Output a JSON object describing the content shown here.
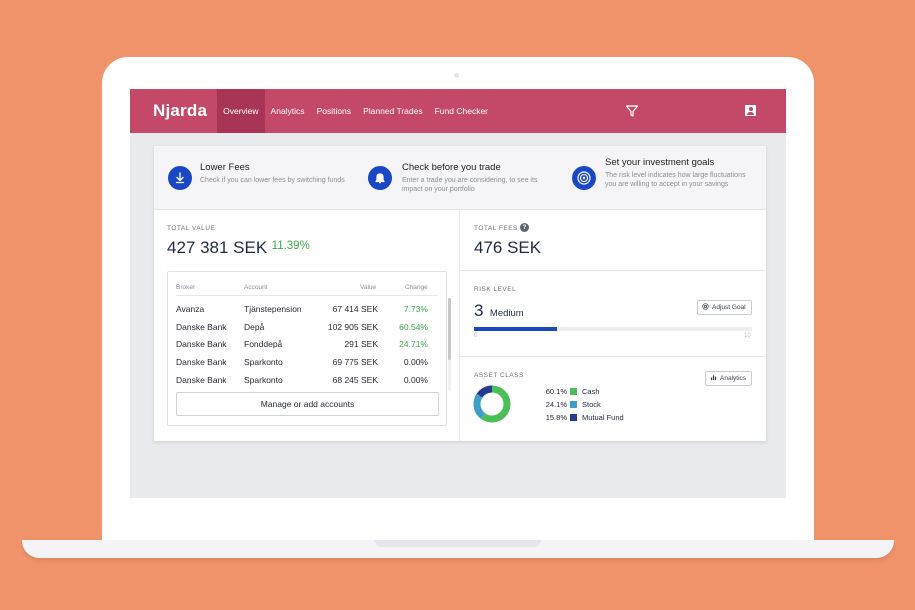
{
  "nav": {
    "logo": "Njarda",
    "items": [
      "Overview",
      "Analytics",
      "Positions",
      "Planned Trades",
      "Fund Checker"
    ],
    "active": "Overview"
  },
  "features": [
    {
      "title": "Lower Fees",
      "desc": "Check if you can lower fees by switching funds",
      "icon": "download-arrow-icon"
    },
    {
      "title": "Check before you trade",
      "desc": "Enter a trade you are considering, to see its impact on your portfolio",
      "icon": "bell-icon"
    },
    {
      "title": "Set your investment goals",
      "desc": "The risk level indicates how large fluctuations you are willing to accept in your savings",
      "icon": "target-icon"
    }
  ],
  "total_value": {
    "label": "TOTAL VALUE",
    "amount": "427 381 SEK",
    "change": "11.39%"
  },
  "accounts_table": {
    "headers": {
      "broker": "Broker",
      "account": "Account",
      "value": "Value",
      "change": "Change"
    },
    "rows": [
      {
        "broker": "Avanza",
        "account": "Tjänstepension",
        "value": "67 414 SEK",
        "change": "7.73%",
        "positive": true
      },
      {
        "broker": "Danske Bank",
        "account": "Depå",
        "value": "102 905 SEK",
        "change": "60.54%",
        "positive": true
      },
      {
        "broker": "Danske Bank",
        "account": "Fonddepå",
        "value": "291 SEK",
        "change": "24.71%",
        "positive": true
      },
      {
        "broker": "Danske Bank",
        "account": "Sparkonto",
        "value": "69 775 SEK",
        "change": "0.00%",
        "positive": false
      },
      {
        "broker": "Danske Bank",
        "account": "Sparkonto",
        "value": "68 245 SEK",
        "change": "0.00%",
        "positive": false
      }
    ],
    "manage_label": "Manage or add accounts"
  },
  "total_fees": {
    "label": "TOTAL FEES",
    "amount": "476 SEK"
  },
  "risk": {
    "label": "RISK LEVEL",
    "level": "3",
    "level_name": "Medium",
    "min": "0",
    "max": "10",
    "fraction": 0.3,
    "adjust_label": "Adjust Goal"
  },
  "asset_class": {
    "label": "ASSET CLASS",
    "analytics_label": "Analytics",
    "items": [
      {
        "pct": "60.1%",
        "name": "Cash",
        "value": 60.1,
        "color": "#4bbf57"
      },
      {
        "pct": "24.1%",
        "name": "Stock",
        "value": 24.1,
        "color": "#3d9ec7"
      },
      {
        "pct": "15.8%",
        "name": "Mutual Fund",
        "value": 15.8,
        "color": "#243b91"
      }
    ]
  },
  "colors": {
    "brand": "#c44868",
    "brand_dark": "#a93556",
    "accent": "#1b47c4",
    "positive": "#3ea84f",
    "background": "#f0936b"
  }
}
